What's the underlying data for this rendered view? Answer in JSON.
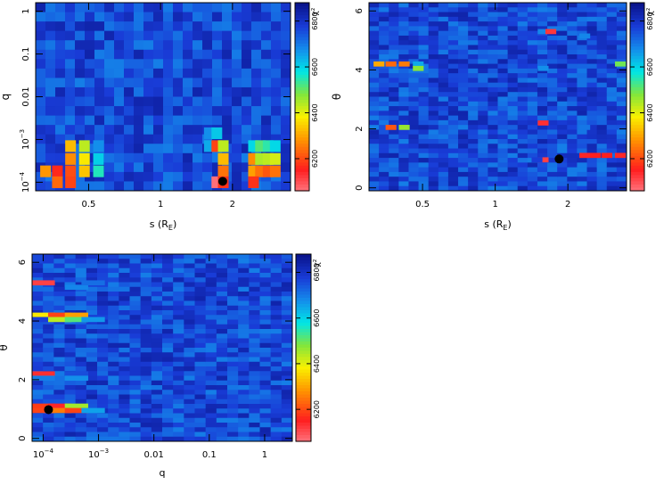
{
  "colorbar": {
    "label": "χ²",
    "ticks": [
      "6800",
      "6600",
      "6400",
      "6200"
    ],
    "tick_values": [
      6800,
      6600,
      6400,
      6200
    ],
    "range": [
      6060,
      6880
    ],
    "background_value": 6840
  },
  "chart_data": [
    {
      "id": "panel-s-q",
      "type": "heatmap",
      "xlabel": "s (R_E)",
      "ylabel": "q",
      "xticks": [
        "0.5",
        "1",
        "2"
      ],
      "xtick_values": [
        0.5,
        1,
        2
      ],
      "xlim": [
        0.3,
        3.5
      ],
      "yticks": [
        "10^-4",
        "10^-3",
        "0.01",
        "0.1",
        "1"
      ],
      "ytick_values": [
        -4,
        -3,
        -2,
        -1,
        0
      ],
      "ylim": [
        -4.2,
        0.2
      ],
      "yscale": "log10",
      "best_fit": {
        "s": 1.82,
        "q": 0.000105
      },
      "cells": [
        {
          "s": 0.42,
          "q": 0.0007,
          "chi2": 6330
        },
        {
          "s": 0.48,
          "q": 0.0007,
          "chi2": 6440
        },
        {
          "s": 0.55,
          "q": 0.0007,
          "chi2": 6680
        },
        {
          "s": 0.42,
          "q": 0.00035,
          "chi2": 6280
        },
        {
          "s": 0.48,
          "q": 0.00035,
          "chi2": 6380
        },
        {
          "s": 0.55,
          "q": 0.00035,
          "chi2": 6610
        },
        {
          "s": 0.33,
          "q": 0.00018,
          "chi2": 6290
        },
        {
          "s": 0.37,
          "q": 0.00018,
          "chi2": 6170
        },
        {
          "s": 0.42,
          "q": 0.00018,
          "chi2": 6210
        },
        {
          "s": 0.48,
          "q": 0.00018,
          "chi2": 6340
        },
        {
          "s": 0.55,
          "q": 0.00018,
          "chi2": 6560
        },
        {
          "s": 0.37,
          "q": 0.0001,
          "chi2": 6240
        },
        {
          "s": 0.42,
          "q": 0.0001,
          "chi2": 6200
        },
        {
          "s": 1.6,
          "q": 0.0014,
          "chi2": 6680
        },
        {
          "s": 1.72,
          "q": 0.0014,
          "chi2": 6620
        },
        {
          "s": 1.6,
          "q": 0.0007,
          "chi2": 6650
        },
        {
          "s": 1.72,
          "q": 0.0007,
          "chi2": 6200
        },
        {
          "s": 1.83,
          "q": 0.0007,
          "chi2": 6440
        },
        {
          "s": 1.83,
          "q": 0.00035,
          "chi2": 6330
        },
        {
          "s": 1.83,
          "q": 0.00018,
          "chi2": 6250
        },
        {
          "s": 1.72,
          "q": 0.0001,
          "chi2": 6070
        },
        {
          "s": 1.83,
          "q": 0.0001,
          "chi2": 6180
        },
        {
          "s": 2.45,
          "q": 0.0007,
          "chi2": 6600
        },
        {
          "s": 2.62,
          "q": 0.0007,
          "chi2": 6520
        },
        {
          "s": 2.82,
          "q": 0.0007,
          "chi2": 6550
        },
        {
          "s": 3.02,
          "q": 0.0007,
          "chi2": 6600
        },
        {
          "s": 2.45,
          "q": 0.00035,
          "chi2": 6280
        },
        {
          "s": 2.62,
          "q": 0.00035,
          "chi2": 6450
        },
        {
          "s": 2.82,
          "q": 0.00035,
          "chi2": 6440
        },
        {
          "s": 3.02,
          "q": 0.00035,
          "chi2": 6420
        },
        {
          "s": 2.45,
          "q": 0.00018,
          "chi2": 6300
        },
        {
          "s": 2.62,
          "q": 0.00018,
          "chi2": 6250
        },
        {
          "s": 2.82,
          "q": 0.00018,
          "chi2": 6220
        },
        {
          "s": 3.02,
          "q": 0.00018,
          "chi2": 6250
        },
        {
          "s": 2.45,
          "q": 0.0001,
          "chi2": 6180
        }
      ]
    },
    {
      "id": "panel-s-theta",
      "type": "heatmap",
      "xlabel": "s (R_E)",
      "ylabel": "θ",
      "xticks": [
        "0.5",
        "1",
        "2"
      ],
      "xtick_values": [
        0.5,
        1,
        2
      ],
      "xlim": [
        0.3,
        3.5
      ],
      "yticks": [
        "0",
        "2",
        "4",
        "6"
      ],
      "ytick_values": [
        0,
        2,
        4,
        6
      ],
      "ylim": [
        -0.1,
        6.28
      ],
      "best_fit": {
        "s": 1.84,
        "theta": 0.98
      },
      "cells": [
        {
          "s": 0.33,
          "theta": 4.2,
          "chi2": 6310
        },
        {
          "s": 0.37,
          "theta": 4.2,
          "chi2": 6240
        },
        {
          "s": 0.42,
          "theta": 4.2,
          "chi2": 6260
        },
        {
          "s": 0.48,
          "theta": 4.2,
          "chi2": 6650
        },
        {
          "s": 0.48,
          "theta": 4.05,
          "chi2": 6480
        },
        {
          "s": 0.37,
          "theta": 2.05,
          "chi2": 6220
        },
        {
          "s": 0.42,
          "theta": 2.05,
          "chi2": 6470
        },
        {
          "s": 1.58,
          "theta": 5.3,
          "chi2": 6690
        },
        {
          "s": 1.7,
          "theta": 5.3,
          "chi2": 6130
        },
        {
          "s": 1.58,
          "theta": 4.05,
          "chi2": 6680
        },
        {
          "s": 1.58,
          "theta": 2.2,
          "chi2": 6140
        },
        {
          "s": 1.58,
          "theta": 0.95,
          "chi2": 6120
        },
        {
          "s": 1.49,
          "theta": 0.95,
          "chi2": 6780
        },
        {
          "s": 2.35,
          "theta": 5.15,
          "chi2": 6690
        },
        {
          "s": 2.35,
          "theta": 2.05,
          "chi2": 6710
        },
        {
          "s": 2.35,
          "theta": 1.1,
          "chi2": 6150
        },
        {
          "s": 2.6,
          "theta": 1.1,
          "chi2": 6160
        },
        {
          "s": 2.9,
          "theta": 1.1,
          "chi2": 6160
        },
        {
          "s": 3.3,
          "theta": 1.1,
          "chi2": 6150
        },
        {
          "s": 3.3,
          "theta": 4.2,
          "chi2": 6500
        }
      ]
    },
    {
      "id": "panel-q-theta",
      "type": "heatmap",
      "xlabel": "q",
      "ylabel": "θ",
      "xticks": [
        "10^-4",
        "10^-3",
        "0.01",
        "0.1",
        "1"
      ],
      "xtick_values": [
        -4,
        -3,
        -2,
        -1,
        0
      ],
      "xlim": [
        -4.2,
        0.5
      ],
      "xscale": "log10",
      "yticks": [
        "0",
        "2",
        "4",
        "6"
      ],
      "ytick_values": [
        0,
        2,
        4,
        6
      ],
      "ylim": [
        -0.1,
        6.28
      ],
      "best_fit": {
        "q": 0.000125,
        "theta": 0.98
      },
      "cells": [
        {
          "q": 0.0001,
          "theta": 5.3,
          "chi2": 6120
        },
        {
          "q": 0.0004,
          "theta": 5.15,
          "chi2": 6690
        },
        {
          "q": 0.0008,
          "theta": 5.3,
          "chi2": 6720
        },
        {
          "q": 0.0001,
          "theta": 4.2,
          "chi2": 6380
        },
        {
          "q": 0.0002,
          "theta": 4.2,
          "chi2": 6200
        },
        {
          "q": 0.0004,
          "theta": 4.2,
          "chi2": 6300
        },
        {
          "q": 0.0001,
          "theta": 4.05,
          "chi2": 6780
        },
        {
          "q": 0.0002,
          "theta": 4.05,
          "chi2": 6440
        },
        {
          "q": 0.0004,
          "theta": 4.05,
          "chi2": 6520
        },
        {
          "q": 0.0008,
          "theta": 4.05,
          "chi2": 6670
        },
        {
          "q": 0.0001,
          "theta": 2.2,
          "chi2": 6140
        },
        {
          "q": 0.0004,
          "theta": 2.2,
          "chi2": 6760
        },
        {
          "q": 0.0001,
          "theta": 2.05,
          "chi2": 6700
        },
        {
          "q": 0.0004,
          "theta": 2.05,
          "chi2": 6680
        },
        {
          "q": 0.0001,
          "theta": 1.1,
          "chi2": 6190
        },
        {
          "q": 0.0002,
          "theta": 1.1,
          "chi2": 6150
        },
        {
          "q": 0.0004,
          "theta": 1.1,
          "chi2": 6460
        },
        {
          "q": 0.0001,
          "theta": 0.95,
          "chi2": 6200
        },
        {
          "q": 0.0002,
          "theta": 0.95,
          "chi2": 6260
        },
        {
          "q": 0.0004,
          "theta": 0.95,
          "chi2": 6200
        },
        {
          "q": 0.0008,
          "theta": 0.95,
          "chi2": 6660
        }
      ]
    }
  ]
}
